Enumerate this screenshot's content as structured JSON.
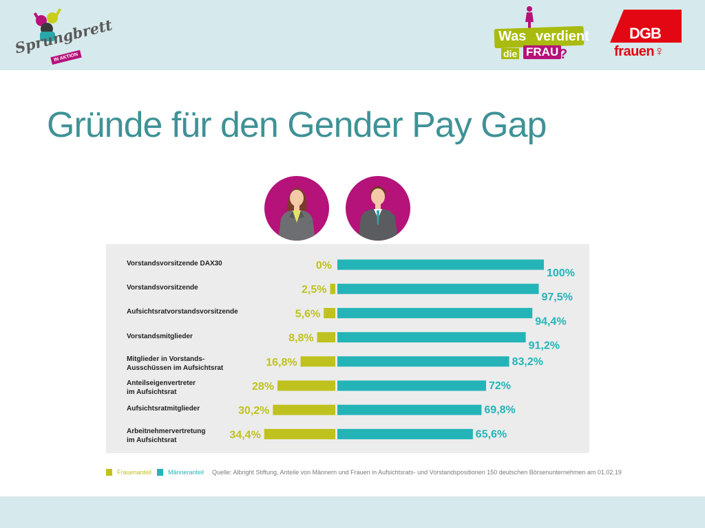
{
  "logos": {
    "sprungbrett": {
      "text": "Sprungbrett",
      "badge": "IN AKTION"
    },
    "was_verdient": {
      "was": "Was",
      "verdient": "verdient",
      "die": "die",
      "frau": "FRAU",
      "question": "?"
    },
    "dgb": {
      "dgb": "DGB",
      "frauen": "frauen♀"
    }
  },
  "title": "Gründe für den Gender Pay Gap",
  "colors": {
    "band": "#d6e9ec",
    "title": "#3f9296",
    "women": "#bfc21e",
    "men": "#24b4b8",
    "accent": "#b5127a",
    "dgb_red": "#e30613"
  },
  "icons": {
    "woman": "businesswoman-icon",
    "man": "businessman-icon"
  },
  "chart_data": {
    "type": "bar",
    "orientation": "horizontal-diverging",
    "categories": [
      [
        "Vorstandsvorsitzende DAX30"
      ],
      [
        "Vorstandsvorsitzende"
      ],
      [
        "Aufsichtsratvorstandsvorsitzende"
      ],
      [
        "Vorstandsmitglieder"
      ],
      [
        "Mitglieder in Vorstands-",
        "Ausschüssen im Aufsichtsrat"
      ],
      [
        "Anteilseigenvertreter",
        "im Aufsichtsrat"
      ],
      [
        "Aufsichtsratmitglieder"
      ],
      [
        "Arbeitnehmervertretung",
        "im Aufsichtsrat"
      ]
    ],
    "series": [
      {
        "name": "Frauenanteil",
        "color": "#bfc21e",
        "values": [
          0,
          2.5,
          5.6,
          8.8,
          16.8,
          28,
          30.2,
          34.4
        ],
        "labels": [
          "0%",
          "2,5%",
          "5,6%",
          "8,8%",
          "16,8%",
          "28%",
          "30,2%",
          "34,4%"
        ]
      },
      {
        "name": "Männeranteil",
        "color": "#24b4b8",
        "values": [
          100,
          97.5,
          94.4,
          91.2,
          83.2,
          72,
          69.8,
          65.6
        ],
        "labels": [
          "100%",
          "97,5%",
          "94,4%",
          "91,2%",
          "83,2%",
          "72%",
          "69,8%",
          "65,6%"
        ]
      }
    ],
    "xlim": [
      0,
      100
    ],
    "grid": false,
    "legend": "bottom-left"
  },
  "legend": {
    "women": "Frauenanteil",
    "men": "Männeranteil"
  },
  "source": "Quelle: Albright Stiftung, Anteile von Männern und Frauen in Aufsichtsrats- und Vorstandspositionen 150 deutschen Börsenunternehmen am 01.02.19"
}
